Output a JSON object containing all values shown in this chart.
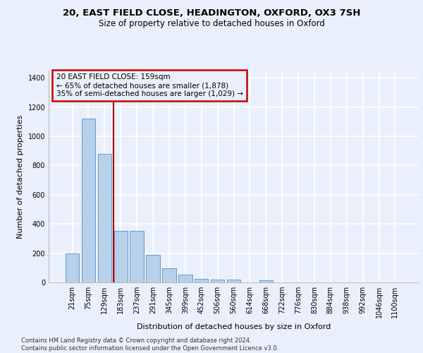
{
  "title_line1": "20, EAST FIELD CLOSE, HEADINGTON, OXFORD, OX3 7SH",
  "title_line2": "Size of property relative to detached houses in Oxford",
  "xlabel": "Distribution of detached houses by size in Oxford",
  "ylabel": "Number of detached properties",
  "categories": [
    "21sqm",
    "75sqm",
    "129sqm",
    "183sqm",
    "237sqm",
    "291sqm",
    "345sqm",
    "399sqm",
    "452sqm",
    "506sqm",
    "560sqm",
    "614sqm",
    "668sqm",
    "722sqm",
    "776sqm",
    "830sqm",
    "884sqm",
    "938sqm",
    "992sqm",
    "1046sqm",
    "1100sqm"
  ],
  "bar_values": [
    197,
    1120,
    878,
    352,
    352,
    190,
    97,
    52,
    25,
    20,
    18,
    0,
    15,
    0,
    0,
    0,
    0,
    0,
    0,
    0,
    0
  ],
  "bar_color": "#b8d0e8",
  "bar_edge_color": "#6699cc",
  "background_color": "#eaf0fb",
  "grid_color": "#ffffff",
  "annotation_box_text_line1": "20 EAST FIELD CLOSE: 159sqm",
  "annotation_box_text_line2": "← 65% of detached houses are smaller (1,878)",
  "annotation_box_text_line3": "35% of semi-detached houses are larger (1,029) →",
  "annotation_box_edge_color": "#cc0000",
  "vline_color": "#aa0000",
  "footnote_line1": "Contains HM Land Registry data © Crown copyright and database right 2024.",
  "footnote_line2": "Contains public sector information licensed under the Open Government Licence v3.0.",
  "ylim": [
    0,
    1450
  ],
  "yticks": [
    0,
    200,
    400,
    600,
    800,
    1000,
    1200,
    1400
  ],
  "title_fontsize": 9.5,
  "subtitle_fontsize": 8.5,
  "ylabel_fontsize": 8,
  "xlabel_fontsize": 8,
  "tick_fontsize": 7,
  "annot_fontsize": 7.5,
  "footnote_fontsize": 6
}
